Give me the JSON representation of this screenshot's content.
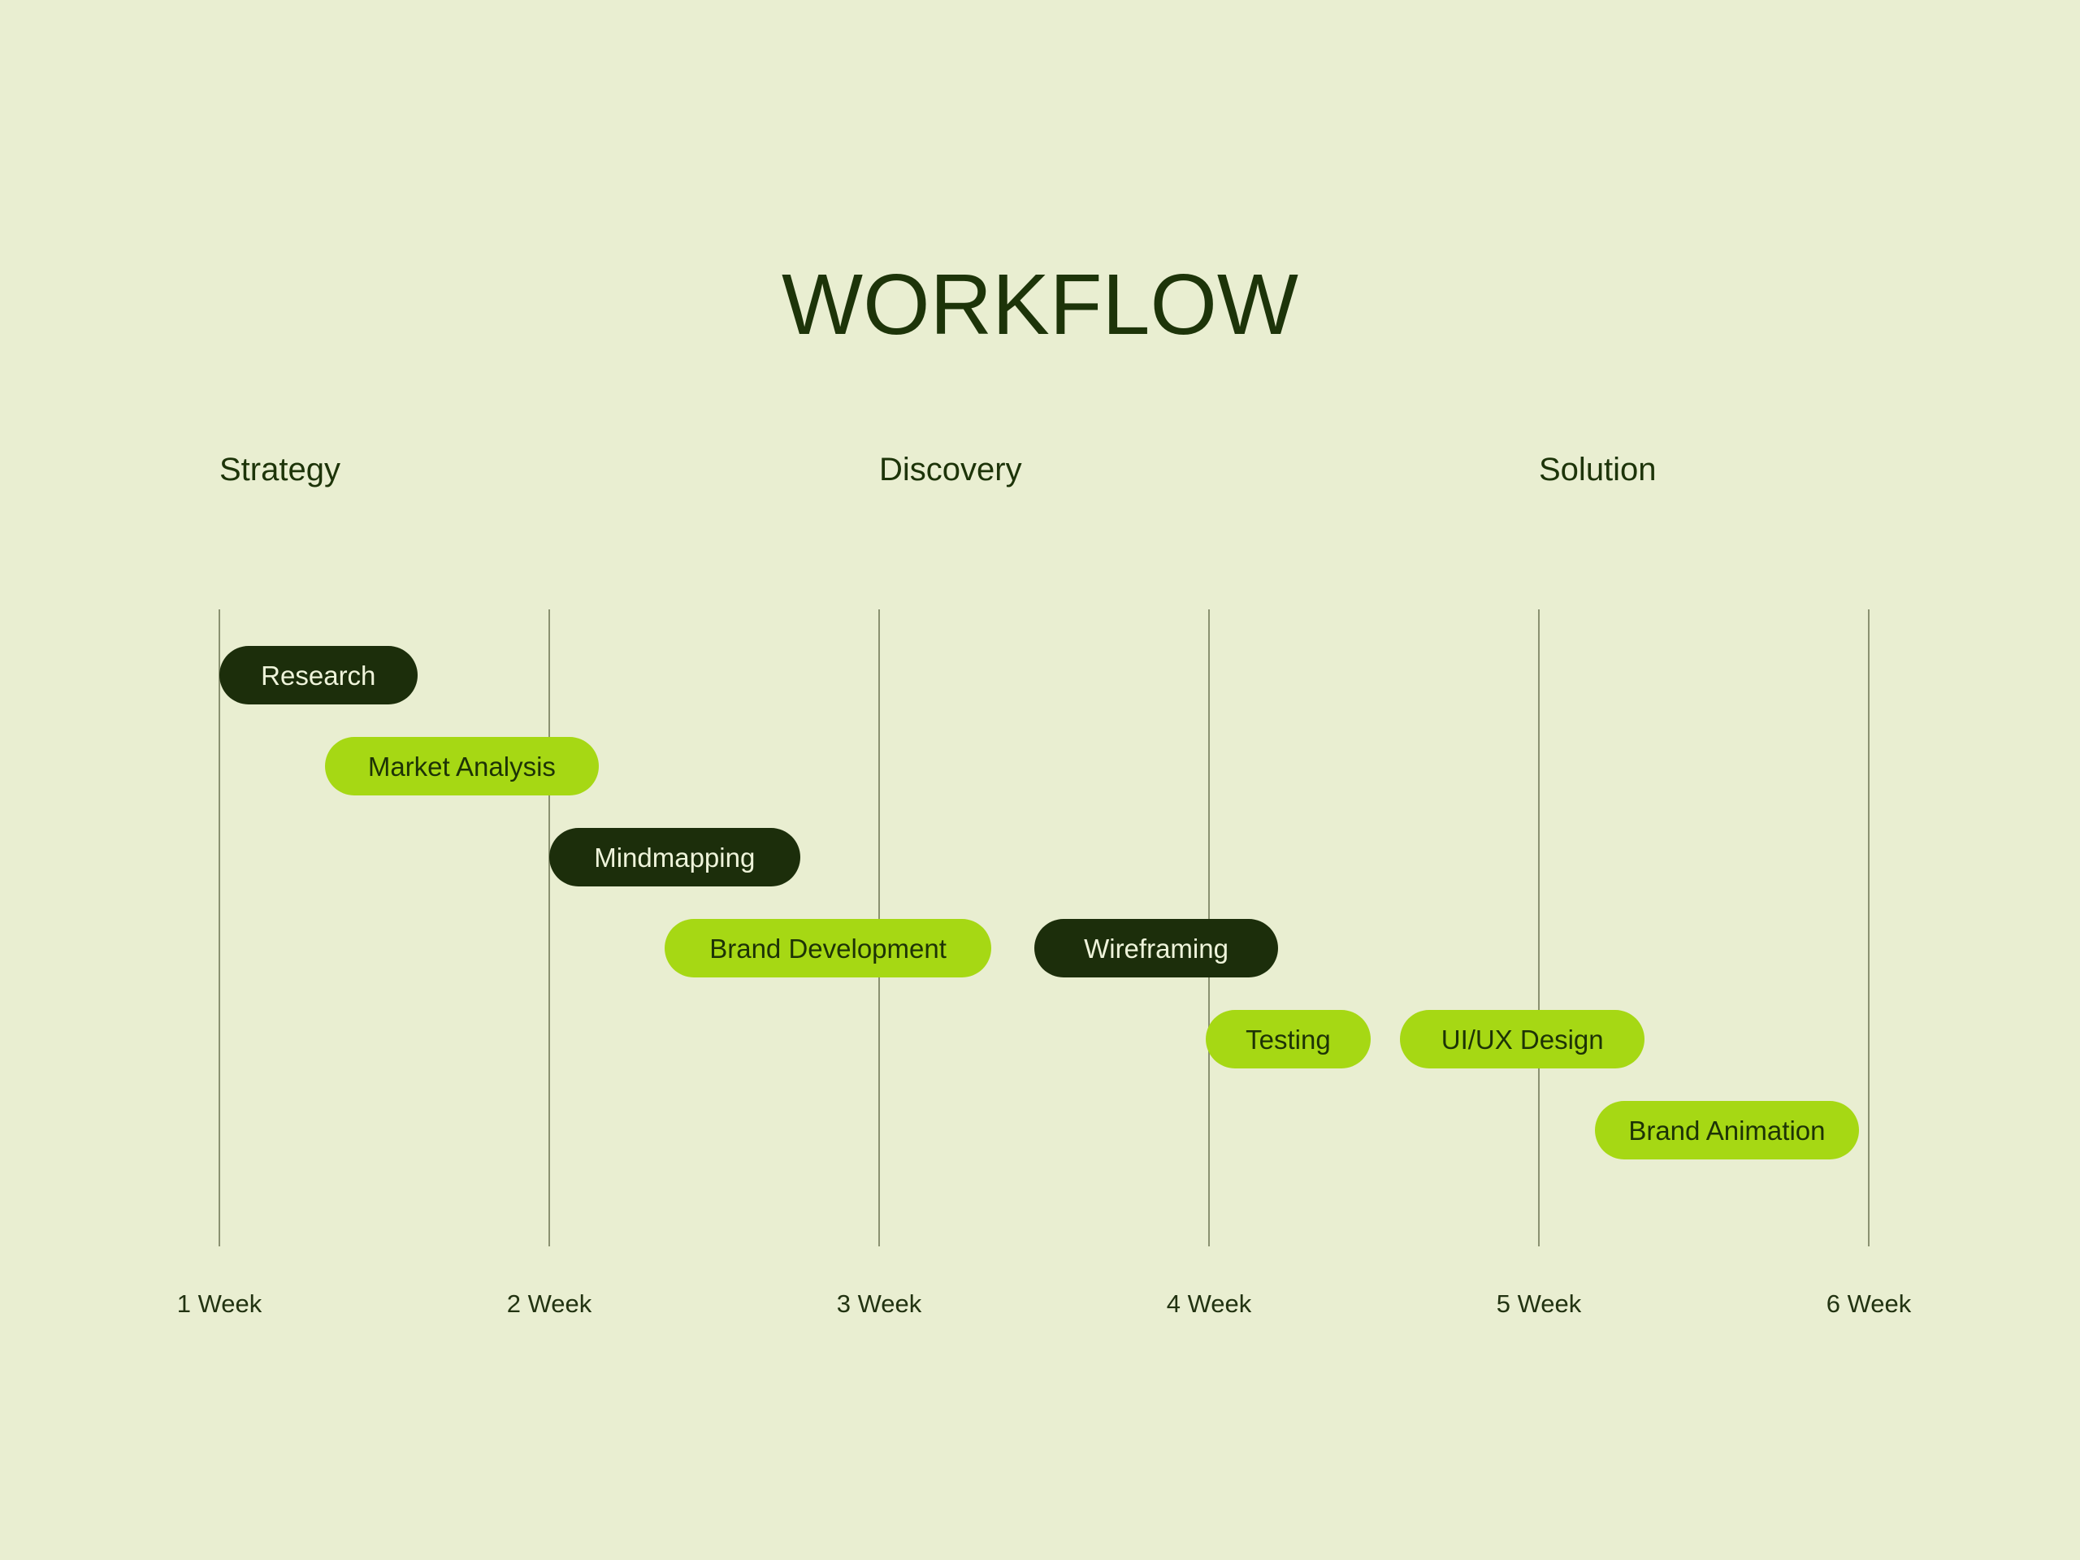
{
  "title": "WORKFLOW",
  "colors": {
    "background": "#e9eed1",
    "dark_pill": "#1c2e0b",
    "lime_pill": "#a6d814",
    "title_text": "#1d3409",
    "text_on_dark_pill": "#eef3da",
    "text_on_lime_pill": "#1d3306",
    "gridline": "rgba(60,70,35,0.55)",
    "axis_text": "#223311"
  },
  "chart_data": {
    "type": "bar",
    "variant": "gantt-timeline",
    "title": "WORKFLOW",
    "x_unit": "week",
    "x_range": [
      1,
      6
    ],
    "x_ticks": [
      "1 Week",
      "2 Week",
      "3 Week",
      "4 Week",
      "5 Week",
      "6 Week"
    ],
    "grid": "vertical-lines",
    "legend": "none",
    "phase_headers": [
      {
        "label": "Strategy",
        "at_week": 1
      },
      {
        "label": "Discovery",
        "at_week": 3
      },
      {
        "label": "Solution",
        "at_week": 5
      }
    ],
    "tasks": [
      {
        "label": "Research",
        "row": 1,
        "start_week": 1.0,
        "end_week": 1.6,
        "style": "dark"
      },
      {
        "label": "Market Analysis",
        "row": 2,
        "start_week": 1.32,
        "end_week": 2.15,
        "style": "lime"
      },
      {
        "label": "Mindmapping",
        "row": 3,
        "start_week": 2.0,
        "end_week": 2.76,
        "style": "dark"
      },
      {
        "label": "Brand Development",
        "row": 4,
        "start_week": 2.35,
        "end_week": 3.34,
        "style": "lime"
      },
      {
        "label": "Wireframing",
        "row": 4,
        "start_week": 3.47,
        "end_week": 4.21,
        "style": "dark"
      },
      {
        "label": "Testing",
        "row": 5,
        "start_week": 3.99,
        "end_week": 4.49,
        "style": "lime"
      },
      {
        "label": "UI/UX Design",
        "row": 5,
        "start_week": 4.58,
        "end_week": 5.32,
        "style": "lime"
      },
      {
        "label": "Brand Animation",
        "row": 6,
        "start_week": 5.17,
        "end_week": 5.97,
        "style": "lime"
      }
    ]
  }
}
